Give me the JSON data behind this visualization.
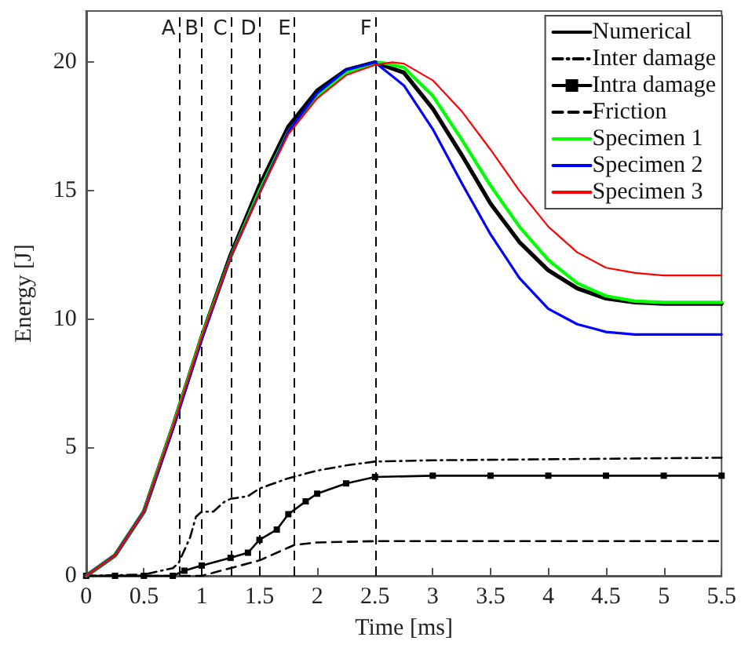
{
  "chart_data": {
    "type": "line",
    "xlabel": "Time [ms]",
    "ylabel": "Energy [J]",
    "xlim": [
      0,
      5.5
    ],
    "xticks": [
      0,
      0.5,
      1,
      1.5,
      2,
      2.5,
      3,
      3.5,
      4,
      4.5,
      5,
      5.5
    ],
    "ylim": [
      0,
      22
    ],
    "yticks": [
      0,
      5,
      10,
      15,
      20
    ],
    "grid": false,
    "legend": "top right",
    "marker": "none",
    "series": [
      {
        "name": "Numerical",
        "color": "#000000",
        "line_style": "solid",
        "x": [
          0,
          0.25,
          0.5,
          0.75,
          1,
          1.25,
          1.5,
          1.75,
          2,
          2.25,
          2.5,
          2.75,
          3,
          3.25,
          3.5,
          3.75,
          4,
          4.25,
          4.5,
          4.75,
          5,
          5.5
        ],
        "values": [
          0,
          0.8,
          2.5,
          5.8,
          9.3,
          12.5,
          15.2,
          17.5,
          18.9,
          19.7,
          20,
          19.6,
          18.2,
          16.4,
          14.5,
          13,
          11.9,
          11.2,
          10.8,
          10.65,
          10.6,
          10.6
        ]
      },
      {
        "name": "Inter damage",
        "color": "#000000",
        "line_style": "dashdot",
        "x": [
          0,
          0.5,
          0.75,
          0.8,
          0.9,
          0.95,
          1,
          1.1,
          1.2,
          1.25,
          1.4,
          1.5,
          1.75,
          2,
          2.25,
          2.5,
          3,
          5.5
        ],
        "values": [
          0,
          0.05,
          0.3,
          0.5,
          1.5,
          2.3,
          2.5,
          2.5,
          2.9,
          3.0,
          3.1,
          3.4,
          3.8,
          4.1,
          4.3,
          4.45,
          4.5,
          4.6
        ]
      },
      {
        "name": "Intra damage",
        "color": "#000000",
        "line_style": "solid",
        "marker": "square",
        "x": [
          0,
          0.25,
          0.5,
          0.75,
          0.85,
          1,
          1.25,
          1.4,
          1.5,
          1.65,
          1.75,
          1.9,
          2,
          2.25,
          2.5,
          3,
          3.5,
          4,
          4.5,
          5,
          5.5
        ],
        "values": [
          0,
          0,
          0,
          0,
          0.2,
          0.4,
          0.7,
          0.9,
          1.4,
          1.8,
          2.4,
          2.9,
          3.2,
          3.6,
          3.85,
          3.9,
          3.9,
          3.9,
          3.9,
          3.9,
          3.9
        ]
      },
      {
        "name": "Friction",
        "color": "#000000",
        "line_style": "dashed",
        "x": [
          0,
          1,
          1.25,
          1.5,
          1.8,
          2,
          2.5,
          5.5
        ],
        "values": [
          0,
          0,
          0.3,
          0.6,
          1.2,
          1.3,
          1.35,
          1.35
        ]
      },
      {
        "name": "Specimen 1",
        "color": "#00ff00",
        "line_style": "solid",
        "x": [
          0,
          0.25,
          0.5,
          0.75,
          1,
          1.25,
          1.5,
          1.75,
          2,
          2.25,
          2.55,
          2.75,
          3,
          3.25,
          3.5,
          3.75,
          4,
          4.25,
          4.5,
          4.75,
          5,
          5.5
        ],
        "values": [
          0,
          0.8,
          2.5,
          5.8,
          9.3,
          12.4,
          15.0,
          17.3,
          18.7,
          19.6,
          20,
          19.8,
          18.7,
          17.0,
          15.2,
          13.6,
          12.3,
          11.4,
          10.9,
          10.7,
          10.65,
          10.65
        ]
      },
      {
        "name": "Specimen 2",
        "color": "#0000ff",
        "line_style": "solid",
        "x": [
          0,
          0.25,
          0.5,
          0.75,
          1,
          1.25,
          1.5,
          1.75,
          2,
          2.25,
          2.5,
          2.75,
          3,
          3.25,
          3.5,
          3.75,
          4,
          4.25,
          4.5,
          4.75,
          5.5
        ],
        "values": [
          0,
          0.8,
          2.5,
          5.7,
          9.2,
          12.4,
          14.9,
          17.3,
          18.8,
          19.7,
          20,
          19.1,
          17.4,
          15.3,
          13.3,
          11.6,
          10.4,
          9.8,
          9.5,
          9.4,
          9.4
        ]
      },
      {
        "name": "Specimen 3",
        "color": "#ff0000",
        "line_style": "solid",
        "x": [
          0,
          0.25,
          0.5,
          0.75,
          1,
          1.25,
          1.5,
          1.75,
          2,
          2.25,
          2.5,
          2.65,
          2.75,
          3,
          3.25,
          3.5,
          3.75,
          4,
          4.25,
          4.5,
          4.75,
          5,
          5.5
        ],
        "values": [
          0,
          0.8,
          2.5,
          5.8,
          9.3,
          12.4,
          14.9,
          17.2,
          18.6,
          19.5,
          19.9,
          20,
          19.95,
          19.3,
          18.1,
          16.6,
          15.0,
          13.6,
          12.6,
          12.0,
          11.8,
          11.7,
          11.7
        ]
      }
    ],
    "ref_lines": [
      {
        "axis": "x",
        "value": 0.8,
        "label": "A",
        "line_style": "dashed",
        "color": "#000000"
      },
      {
        "axis": "x",
        "value": 1,
        "label": "B",
        "line_style": "dashed",
        "color": "#000000"
      },
      {
        "axis": "x",
        "value": 1.25,
        "label": "C",
        "line_style": "dashed",
        "color": "#000000"
      },
      {
        "axis": "x",
        "value": 1.5,
        "label": "D",
        "line_style": "dashed",
        "color": "#000000"
      },
      {
        "axis": "x",
        "value": 1.8,
        "label": "E",
        "line_style": "dashed",
        "color": "#000000"
      },
      {
        "axis": "x",
        "value": 2.5,
        "label": "F",
        "line_style": "dashed",
        "color": "#000000"
      }
    ]
  }
}
